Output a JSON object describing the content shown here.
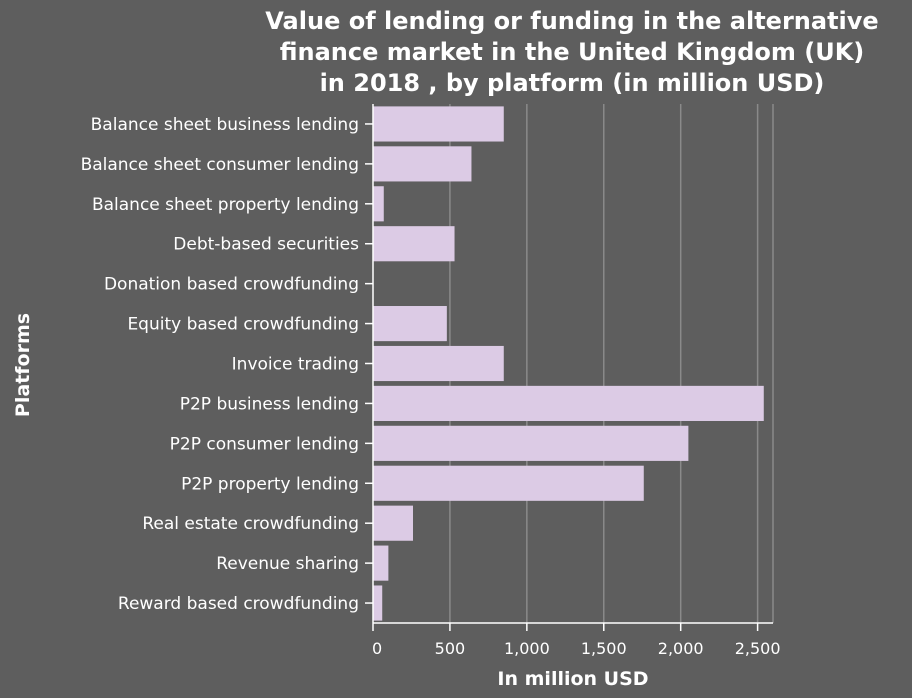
{
  "chart_data": {
    "type": "bar",
    "orientation": "horizontal",
    "title": [
      "Value of lending or funding in the alternative",
      "finance market in the United Kingdom (UK)",
      "in 2018 , by platform (in million USD)"
    ],
    "xlabel": "In million USD",
    "ylabel": "Platforms",
    "categories": [
      "Balance sheet business lending",
      "Balance sheet consumer lending",
      "Balance sheet property lending",
      "Debt-based securities",
      "Donation based crowdfunding",
      "Equity based crowdfunding",
      "Invoice trading",
      "P2P business lending",
      "P2P consumer lending",
      "P2P property lending",
      "Real estate crowdfunding",
      "Revenue sharing",
      "Reward based crowdfunding"
    ],
    "values": [
      850,
      640,
      70,
      530,
      0,
      480,
      850,
      2540,
      2050,
      1760,
      260,
      100,
      60
    ],
    "xlim": [
      0,
      2600
    ],
    "xticks": [
      0,
      500,
      1000,
      1500,
      2000,
      2500
    ],
    "xtick_labels": [
      "0",
      "500",
      "1,000",
      "1,500",
      "2,000",
      "2,500"
    ],
    "grid": "vertical",
    "colors": {
      "background": "#5e5e5e",
      "bar": "#dccbe5",
      "grid": "#8a8a8a",
      "axis": "#ffffff",
      "text": "#ffffff"
    }
  }
}
